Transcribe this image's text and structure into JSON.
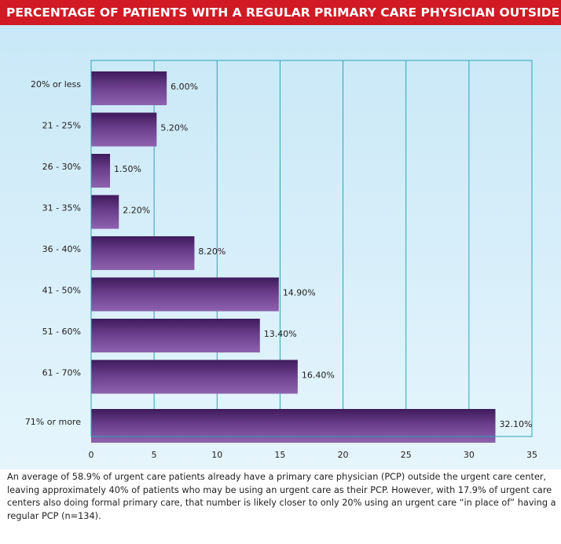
{
  "header": {
    "title": "PERCENTAGE OF PATIENTS WITH A REGULAR PRIMARY CARE PHYSICIAN OUTSIDE OF CENTER"
  },
  "chart_data": {
    "type": "bar",
    "orientation": "horizontal",
    "title": "PERCENTAGE OF PATIENTS WITH A REGULAR PRIMARY CARE PHYSICIAN OUTSIDE OF CENTER",
    "categories": [
      "20% or less",
      "21 - 25%",
      "26 - 30%",
      "31 - 35%",
      "36 - 40%",
      "41 - 50%",
      "51 - 60%",
      "61 - 70%",
      "71% or more"
    ],
    "values": [
      6.0,
      5.2,
      1.5,
      2.2,
      8.2,
      14.9,
      13.4,
      16.4,
      32.1
    ],
    "value_labels": [
      "6.00%",
      "5.20%",
      "1.50%",
      "2.20%",
      "8.20%",
      "14.90%",
      "13.40%",
      "16.40%",
      "32.10%"
    ],
    "xlim": [
      0,
      35
    ],
    "xticks": [
      0,
      5,
      10,
      15,
      20,
      25,
      30,
      35
    ],
    "xlabel": "",
    "ylabel": "",
    "grid": true,
    "colors": {
      "bar_dark": "#3e1a5c",
      "bar_mid": "#6a3e8a",
      "bar_light": "#8e62ae",
      "grid": "#2aa6b8",
      "plot_border": "#2aa6b8"
    }
  },
  "caption": {
    "text": "An average of 58.9% of urgent care patients already have a primary care physician (PCP) outside the urgent care center, leaving approximately 40% of patients who may be using an urgent care as their PCP. However, with 17.9% of urgent care centers also doing formal primary care, that number is likely closer to only 20% using an urgent care “in place of” having a regular PCP (n=134)."
  },
  "colors": {
    "header_bg": "#d11a24",
    "header_text": "#ffffff",
    "panel_bg": "#d3ecf9"
  }
}
